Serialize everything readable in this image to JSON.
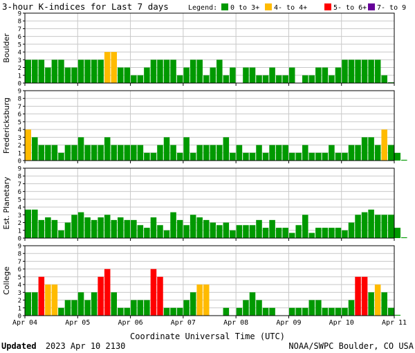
{
  "header": {
    "title": "3-hour K-indices for Last 7 days",
    "legend_label": "Legend:",
    "legend": [
      {
        "label": "0 to 3+",
        "color": "#009900"
      },
      {
        "label": "4- to 4+",
        "color": "#ffbb00"
      },
      {
        "label": "5- to 6+",
        "color": "#ff0000"
      },
      {
        "label": "7- to 9",
        "color": "#660099"
      }
    ]
  },
  "footer": {
    "updated_label": "Updated",
    "updated_value": "2023 Apr 10 2130",
    "credit": "NOAA/SWPC Boulder, CO USA"
  },
  "chart_data": {
    "type": "bar",
    "xlabel": "Coordinate Universal Time (UTC)",
    "x_ticks": [
      "Apr 04",
      "Apr 05",
      "Apr 06",
      "Apr 07",
      "Apr 08",
      "Apr 09",
      "Apr 10",
      "Apr 11"
    ],
    "ylim": [
      0,
      9
    ],
    "y_ticks": [
      "0",
      "1",
      "2",
      "3",
      "4",
      "5",
      "6",
      "7",
      "8",
      "9"
    ],
    "grid": true,
    "colors": {
      "green": "#009900",
      "yellow": "#ffbb00",
      "red": "#ff0000",
      "purple": "#660099"
    },
    "panels": [
      {
        "name": "Boulder",
        "values": [
          3,
          3,
          3,
          2,
          3,
          3,
          2,
          2,
          3,
          3,
          3,
          3,
          4,
          4,
          2,
          2,
          1,
          1,
          2,
          3,
          3,
          3,
          3,
          1,
          2,
          3,
          3,
          1,
          2,
          3,
          1,
          2,
          0,
          2,
          2,
          1,
          1,
          2,
          1,
          1,
          2,
          0,
          1,
          1,
          2,
          2,
          1,
          2,
          3,
          3,
          3,
          3,
          3,
          3,
          1,
          0.1
        ]
      },
      {
        "name": "Fredericksburg",
        "values": [
          4,
          3,
          2,
          2,
          2,
          1,
          2,
          2,
          3,
          2,
          2,
          2,
          3,
          2,
          2,
          2,
          2,
          2,
          1,
          1,
          2,
          3,
          2,
          1,
          3,
          1,
          2,
          2,
          2,
          2,
          3,
          1,
          2,
          1,
          1,
          2,
          1,
          2,
          2,
          2,
          1,
          1,
          2,
          1,
          1,
          1,
          2,
          1,
          1,
          2,
          2,
          3,
          3,
          2,
          4,
          2,
          1,
          0.1
        ]
      },
      {
        "name": "Est. Planetary",
        "values": [
          3.67,
          3.67,
          2.33,
          2.67,
          2.33,
          1,
          2,
          3,
          3.33,
          2.67,
          2.33,
          2.67,
          3,
          2.33,
          2.67,
          2.33,
          2.33,
          1.67,
          1.33,
          2.67,
          1.67,
          1,
          3.33,
          2.33,
          1.67,
          3,
          2.67,
          2.33,
          2,
          1.67,
          2,
          1,
          1.67,
          1.67,
          1.67,
          2.33,
          1.33,
          2.33,
          1.33,
          1.33,
          0.67,
          1.67,
          3,
          0.67,
          1.33,
          1.33,
          1.33,
          1.33,
          1,
          2,
          3,
          3.33,
          3.67,
          3,
          3,
          3,
          1.33,
          0.1
        ]
      },
      {
        "name": "College",
        "values": [
          3,
          3,
          5,
          4,
          4,
          1,
          2,
          2,
          3,
          2,
          3,
          5,
          6,
          3,
          1,
          1,
          2,
          2,
          2,
          6,
          5,
          1,
          1,
          1,
          2,
          3,
          4,
          4,
          0,
          0,
          1,
          0,
          1,
          2,
          3,
          2,
          1,
          1,
          0,
          0,
          1,
          1,
          1,
          2,
          2,
          1,
          1,
          1,
          1,
          2,
          5,
          5,
          3,
          4,
          3,
          1,
          0.1
        ]
      }
    ]
  }
}
